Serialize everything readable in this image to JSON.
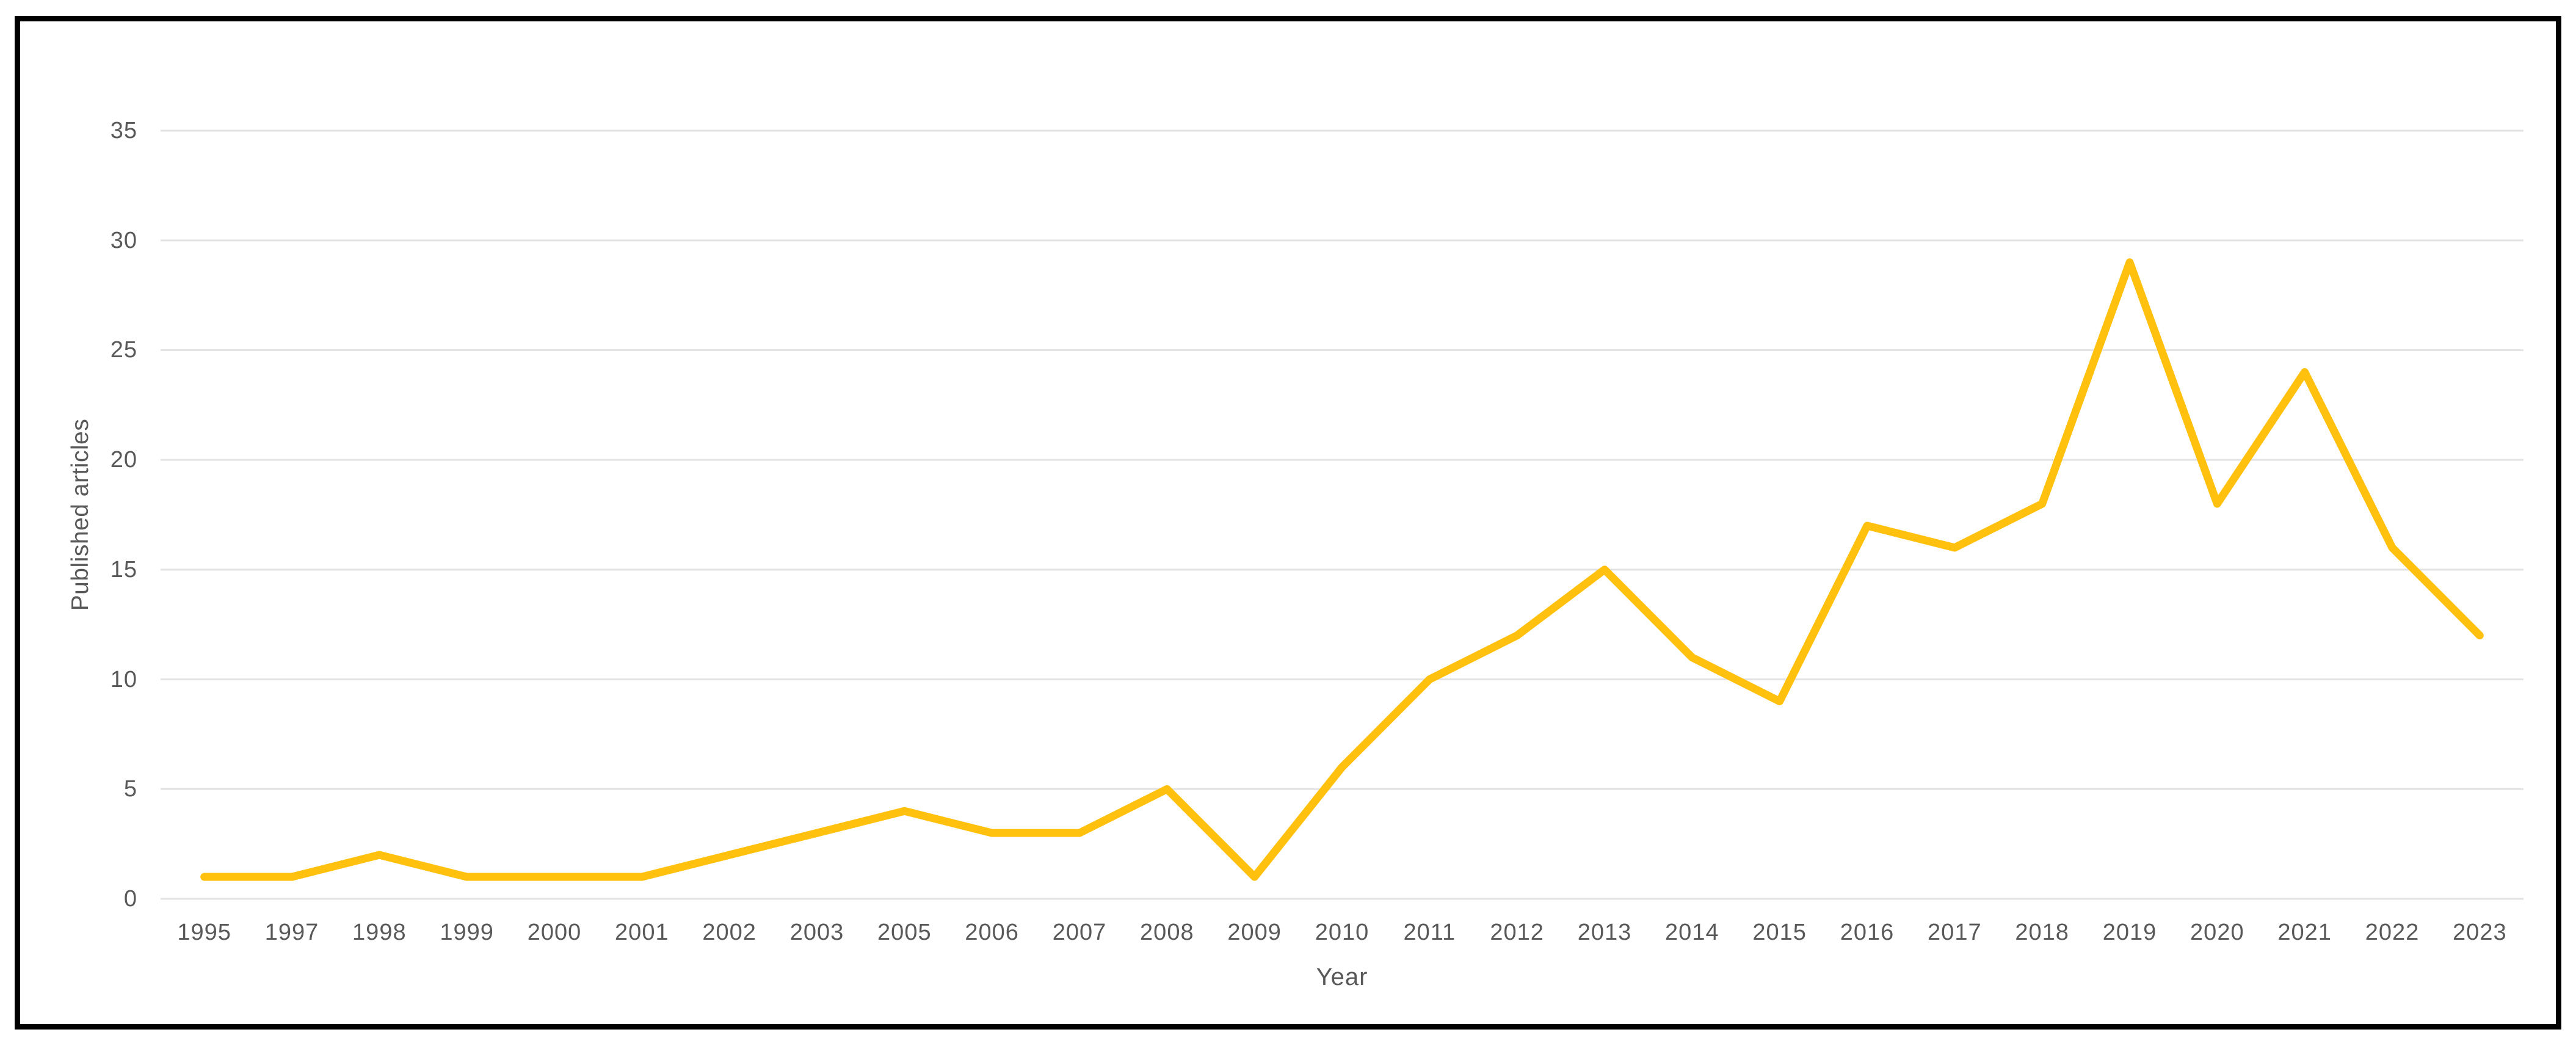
{
  "chart": {
    "y_axis_title": "Published articles",
    "x_axis_title": "Year",
    "colors": {
      "line": "#FFC10D",
      "grid": "#E3E3E3",
      "text": "#595959",
      "frame": "#000000",
      "background": "#FFFFFF"
    }
  },
  "chart_data": {
    "type": "line",
    "title": "",
    "xlabel": "Year",
    "ylabel": "Published articles",
    "categories": [
      "1995",
      "1997",
      "1998",
      "1999",
      "2000",
      "2001",
      "2002",
      "2003",
      "2005",
      "2006",
      "2007",
      "2008",
      "2009",
      "2010",
      "2011",
      "2012",
      "2013",
      "2014",
      "2015",
      "2016",
      "2017",
      "2018",
      "2019",
      "2020",
      "2021",
      "2022",
      "2023"
    ],
    "values": [
      1,
      1,
      2,
      1,
      1,
      1,
      2,
      3,
      4,
      3,
      3,
      5,
      1,
      6,
      10,
      12,
      15,
      11,
      9,
      17,
      16,
      18,
      29,
      18,
      24,
      16,
      12
    ],
    "series_name": "Published articles",
    "ylim": [
      0,
      35
    ],
    "y_ticks": [
      0,
      5,
      10,
      15,
      20,
      25,
      30,
      35
    ],
    "grid": true,
    "legend": "none"
  }
}
